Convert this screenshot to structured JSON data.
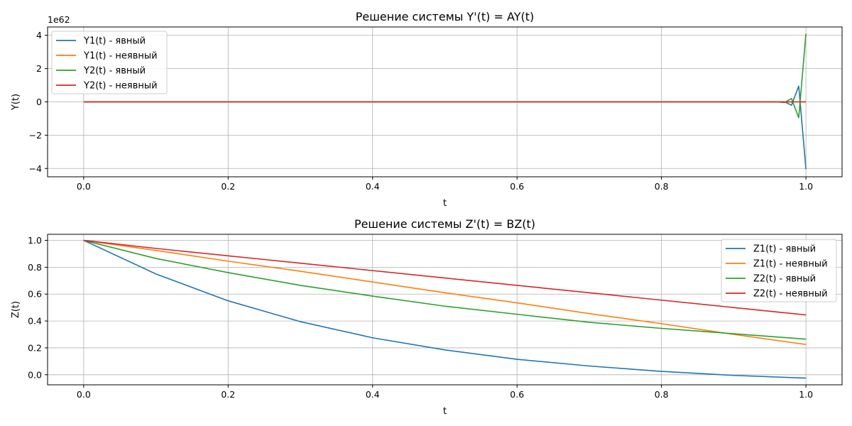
{
  "chart_data": [
    {
      "type": "line",
      "title": "Решение системы Y'(t) = AY(t)",
      "xlabel": "t",
      "ylabel": "Y(t)",
      "y_offset_text": "1e62",
      "y_scale_exponent": 62,
      "xlim": [
        -0.05,
        1.05
      ],
      "ylim": [
        -4.5,
        4.5
      ],
      "xticks": [
        0.0,
        0.2,
        0.4,
        0.6,
        0.8,
        1.0
      ],
      "xtick_labels": [
        "0.0",
        "0.2",
        "0.4",
        "0.6",
        "0.8",
        "1.0"
      ],
      "yticks": [
        -4,
        -2,
        0,
        2,
        4
      ],
      "ytick_labels": [
        "−4",
        "−2",
        "0",
        "2",
        "4"
      ],
      "grid": true,
      "legend_position": "top-left",
      "series": [
        {
          "name": "Y1(t) - явный",
          "color": "#1f77b4",
          "x": [
            0.0,
            0.96,
            0.97,
            0.98,
            0.99,
            1.0
          ],
          "y": [
            0,
            0,
            0.01,
            -0.2,
            0.95,
            -4.05
          ]
        },
        {
          "name": "Y1(t) - неявный",
          "color": "#ff7f0e",
          "x": [
            0.0,
            1.0
          ],
          "y": [
            0,
            0
          ]
        },
        {
          "name": "Y2(t) - явный",
          "color": "#2ca02c",
          "x": [
            0.0,
            0.96,
            0.97,
            0.98,
            0.99,
            1.0
          ],
          "y": [
            0,
            0,
            -0.04,
            0.2,
            -0.95,
            4.1
          ]
        },
        {
          "name": "Y2(t) - неявный",
          "color": "#d62728",
          "x": [
            0.0,
            1.0
          ],
          "y": [
            0,
            0
          ]
        }
      ]
    },
    {
      "type": "line",
      "title": "Решение системы Z'(t) = BZ(t)",
      "xlabel": "t",
      "ylabel": "Z(t)",
      "xlim": [
        -0.05,
        1.05
      ],
      "ylim": [
        -0.075,
        1.045
      ],
      "xticks": [
        0.0,
        0.2,
        0.4,
        0.6,
        0.8,
        1.0
      ],
      "xtick_labels": [
        "0.0",
        "0.2",
        "0.4",
        "0.6",
        "0.8",
        "1.0"
      ],
      "yticks": [
        0.0,
        0.2,
        0.4,
        0.6,
        0.8,
        1.0
      ],
      "ytick_labels": [
        "0.0",
        "0.2",
        "0.4",
        "0.6",
        "0.8",
        "1.0"
      ],
      "grid": true,
      "legend_position": "top-right",
      "series": [
        {
          "name": "Z1(t) - явный",
          "color": "#1f77b4",
          "x": [
            0.0,
            0.1,
            0.2,
            0.3,
            0.4,
            0.5,
            0.6,
            0.7,
            0.8,
            0.9,
            1.0
          ],
          "y": [
            1.0,
            0.75,
            0.55,
            0.395,
            0.275,
            0.185,
            0.115,
            0.065,
            0.025,
            -0.005,
            -0.025
          ]
        },
        {
          "name": "Z1(t) - неявный",
          "color": "#ff7f0e",
          "x": [
            0.0,
            0.1,
            0.2,
            0.3,
            0.4,
            0.5,
            0.6,
            0.7,
            0.8,
            0.9,
            1.0
          ],
          "y": [
            1.0,
            0.925,
            0.845,
            0.77,
            0.69,
            0.61,
            0.535,
            0.455,
            0.38,
            0.3,
            0.225
          ]
        },
        {
          "name": "Z2(t) - явный",
          "color": "#2ca02c",
          "x": [
            0.0,
            0.1,
            0.2,
            0.3,
            0.4,
            0.5,
            0.6,
            0.7,
            0.8,
            0.9,
            1.0
          ],
          "y": [
            1.0,
            0.865,
            0.76,
            0.665,
            0.585,
            0.51,
            0.45,
            0.39,
            0.345,
            0.305,
            0.265
          ]
        },
        {
          "name": "Z2(t) - неявный",
          "color": "#d62728",
          "x": [
            0.0,
            0.1,
            0.2,
            0.3,
            0.4,
            0.5,
            0.6,
            0.7,
            0.8,
            0.9,
            1.0
          ],
          "y": [
            1.0,
            0.94,
            0.885,
            0.83,
            0.775,
            0.72,
            0.665,
            0.61,
            0.555,
            0.5,
            0.445
          ]
        }
      ]
    }
  ]
}
